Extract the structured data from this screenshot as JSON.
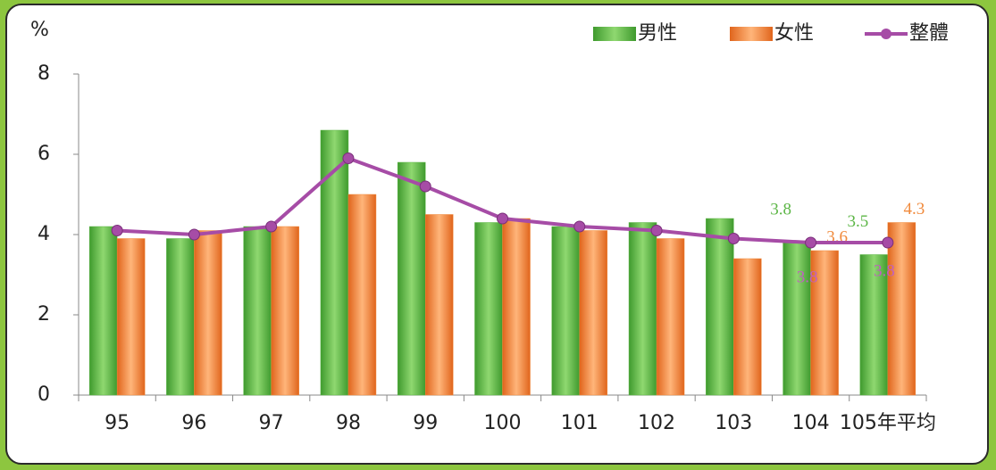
{
  "chart_data": {
    "type": "bar_line",
    "y_label": "%",
    "categories": [
      "95",
      "96",
      "97",
      "98",
      "99",
      "100",
      "101",
      "102",
      "103",
      "104",
      "105年平均"
    ],
    "series": [
      {
        "name": "男性",
        "type": "bar",
        "color": "#5cb646",
        "values": [
          4.2,
          3.9,
          4.2,
          6.6,
          5.8,
          4.3,
          4.2,
          4.3,
          4.4,
          3.8,
          3.5
        ],
        "value_labels": [
          null,
          null,
          null,
          null,
          null,
          null,
          null,
          null,
          null,
          "3.8",
          "3.5"
        ]
      },
      {
        "name": "女性",
        "type": "bar",
        "color": "#f08a3c",
        "values": [
          3.9,
          4.1,
          4.2,
          5.0,
          4.5,
          4.4,
          4.1,
          3.9,
          3.4,
          3.6,
          4.3
        ],
        "value_labels": [
          null,
          null,
          null,
          null,
          null,
          null,
          null,
          null,
          null,
          "3.6",
          "4.3"
        ]
      },
      {
        "name": "整體",
        "type": "line",
        "color": "#a64ca6",
        "values": [
          4.1,
          4.0,
          4.2,
          5.9,
          5.2,
          4.4,
          4.2,
          4.1,
          3.9,
          3.8,
          3.8
        ],
        "value_labels": [
          null,
          null,
          null,
          null,
          null,
          null,
          null,
          null,
          null,
          "3.8",
          "3.8"
        ]
      }
    ],
    "ylim": [
      0,
      8
    ],
    "yticks": [
      0,
      2,
      4,
      6,
      8
    ],
    "legend": "top-right"
  }
}
